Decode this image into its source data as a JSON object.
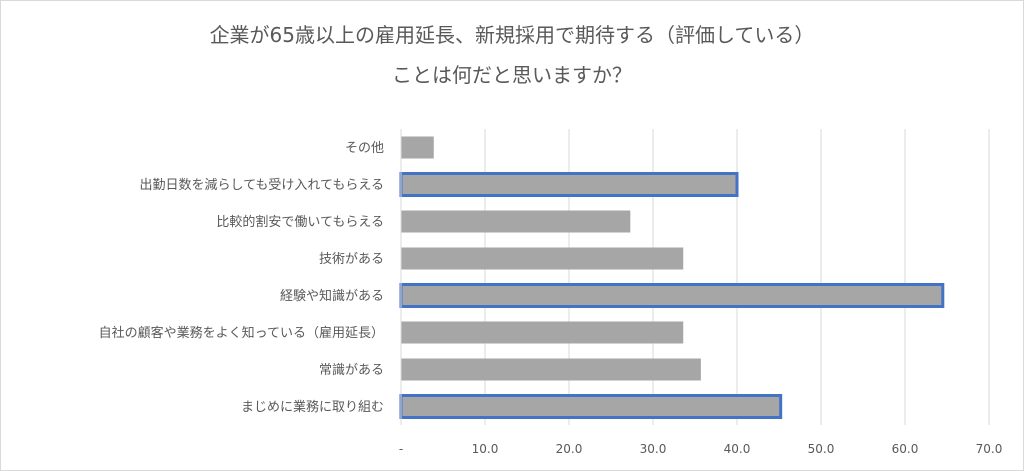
{
  "chart_data": {
    "type": "bar",
    "orientation": "horizontal",
    "title_line1": "企業が65歳以上の雇用延長、新規採用で期待する（評価している）",
    "title_line2": "ことは何だと思いますか？",
    "categories": [
      "その他",
      "出勤日数を減らしても受け入れてもらえる",
      "比較的割安で働いてもらえる",
      "技術がある",
      "経験や知識がある",
      "自社の顧客や業務をよく知っている（雇用延長）",
      "常識がある",
      "まじめに業務に取り組む"
    ],
    "values": [
      3.9,
      40.0,
      27.3,
      33.6,
      64.5,
      33.6,
      35.7,
      45.2
    ],
    "highlighted": [
      false,
      true,
      false,
      false,
      true,
      false,
      false,
      true
    ],
    "xlim": [
      0,
      70
    ],
    "xticks": [
      "-",
      "10.0",
      "20.0",
      "30.0",
      "40.0",
      "50.0",
      "60.0",
      "70.0"
    ],
    "grid": true,
    "legend": "none",
    "bar_color": "#a6a6a6",
    "highlight_color": "#4472c4",
    "grid_color": "#d9d9d9"
  }
}
